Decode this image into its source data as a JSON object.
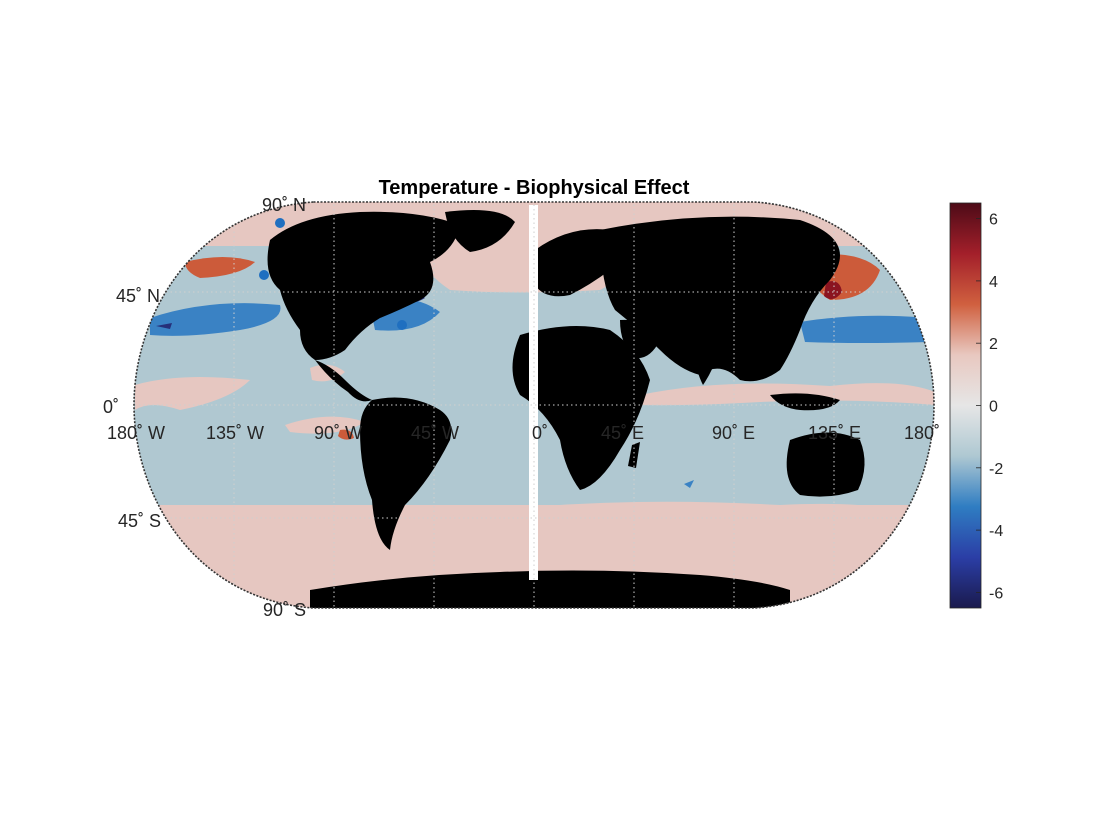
{
  "title": "Temperature - Biophysical Effect",
  "projection": "Robinson",
  "lat_labels": [
    "90˚ N",
    "45˚ N",
    "0˚",
    "45˚ S",
    "90˚ S"
  ],
  "lon_labels": [
    "180˚ W",
    "135˚ W",
    "90˚ W",
    "45˚ W",
    "0˚",
    "45˚ E",
    "90˚ E",
    "135˚ E",
    "180˚"
  ],
  "colorbar": {
    "min": -6.5,
    "max": 6.5,
    "ticks": [
      "6",
      "4",
      "2",
      "0",
      "-2",
      "-4",
      "-6"
    ],
    "tick_values": [
      6,
      4,
      2,
      0,
      -2,
      -4,
      -6
    ],
    "colors": [
      "#1a1a4d",
      "#2b3ea6",
      "#2f7dc2",
      "#aec8d2",
      "#e6e6e6",
      "#e8c8c0",
      "#d0603f",
      "#a31f2a",
      "#4d0b17"
    ]
  },
  "colors": {
    "land": "#000000",
    "ocean_neutral_cool": "#b0c8d1",
    "ocean_warm": "#e6c7c1",
    "ocean_cold": "#3a82c4",
    "ocean_hot": "#cc5b3a",
    "extreme_hot": "#8b1420",
    "extreme_cold": "#26307a"
  }
}
